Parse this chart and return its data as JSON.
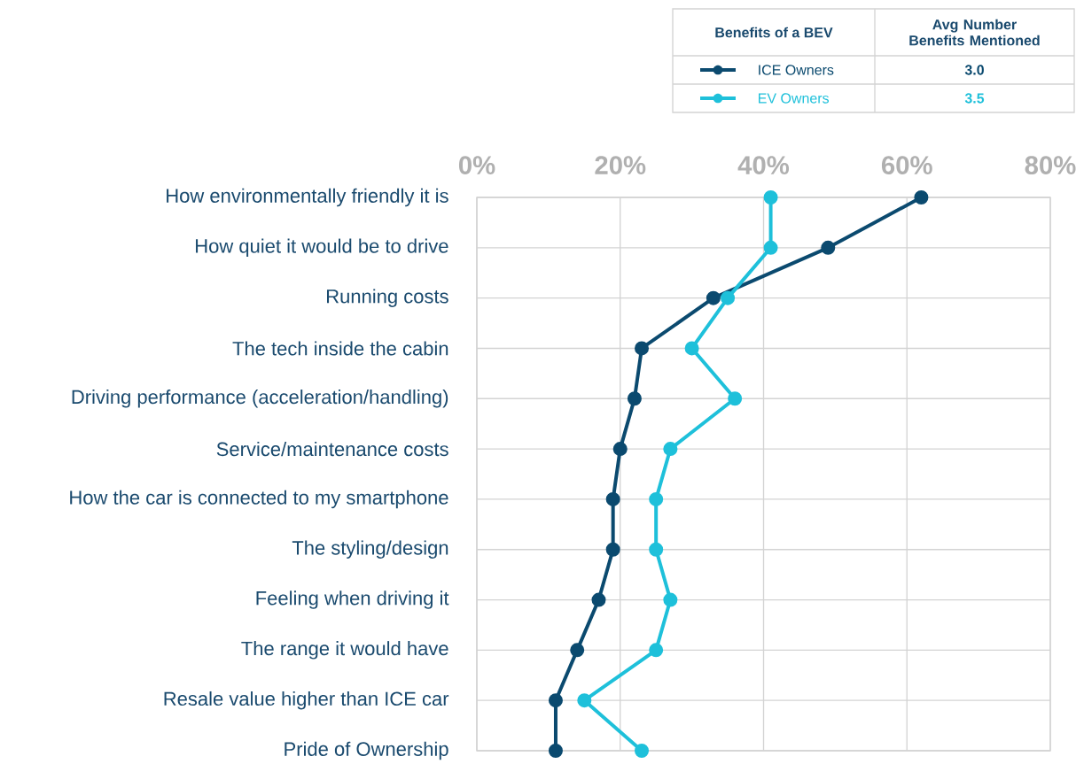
{
  "chart_data": {
    "type": "line",
    "orientation": "horizontal",
    "legend_title": "Benefits of a BEV",
    "categories": [
      "How environmentally friendly it is",
      "How quiet it would be to drive",
      "Running costs",
      "The tech inside the cabin",
      "Driving performance (acceleration/handling)",
      "Service/maintenance costs",
      "How the car is connected to my smartphone",
      "The styling/design",
      "Feeling when driving it",
      "The range it would have",
      "Resale value higher than ICE car",
      "Pride of Ownership"
    ],
    "series": [
      {
        "name": "ICE Owners",
        "color": "#0b4a6f",
        "values": [
          62,
          49,
          33,
          23,
          22,
          20,
          19,
          19,
          17,
          14,
          11,
          11
        ]
      },
      {
        "name": "EV Owners",
        "color": "#1ec0da",
        "values": [
          41,
          41,
          35,
          30,
          36,
          27,
          25,
          25,
          27,
          25,
          15,
          23
        ]
      }
    ],
    "xlim": [
      0,
      80
    ],
    "xticks": [
      {
        "value": 0,
        "label": "0%"
      },
      {
        "value": 20,
        "label": "20%"
      },
      {
        "value": 40,
        "label": "40%"
      },
      {
        "value": 60,
        "label": "60%"
      },
      {
        "value": 80,
        "label": "80%"
      }
    ],
    "annotations": [
      "Avg Number Benefits Mentioned",
      "3.0",
      "3.5"
    ],
    "grid": true,
    "legend": "top right",
    "marker": "circle",
    "line_style": "solid"
  }
}
